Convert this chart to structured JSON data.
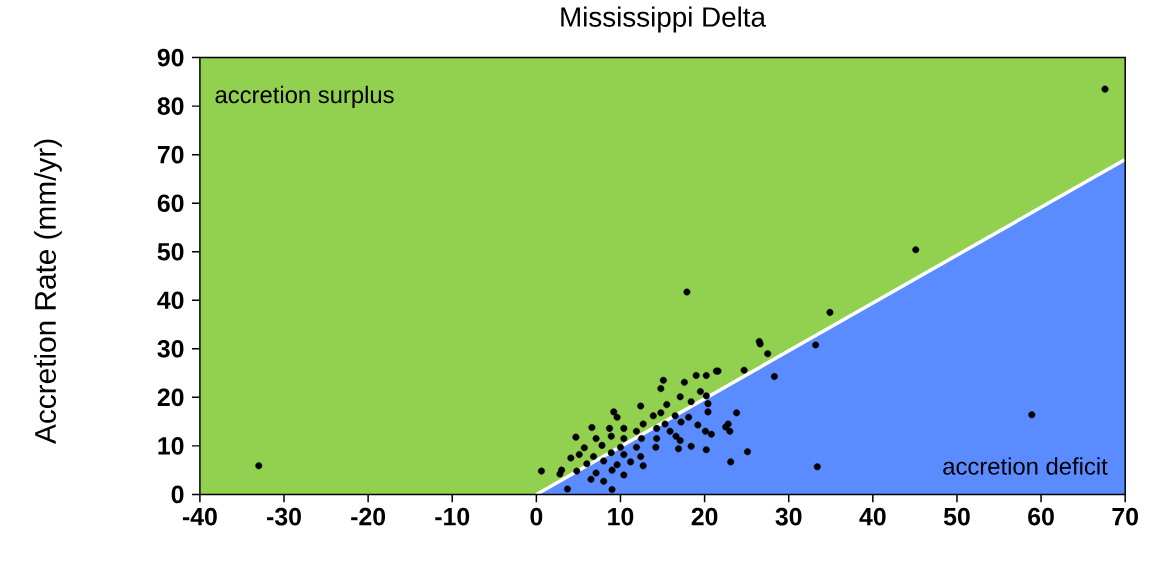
{
  "chart_data": {
    "type": "scatter",
    "title": "Mississippi Delta",
    "ylabel": "Accretion Rate (mm/yr)",
    "annotations": [
      "accretion surplus",
      "accretion deficit"
    ],
    "bands": [
      {
        "axis": "y",
        "from": 0,
        "to": 90,
        "color": "#92d050"
      }
    ],
    "xlim": [
      -40,
      70
    ],
    "ylim": [
      0,
      90
    ],
    "xticks": [
      -40,
      -30,
      -20,
      -10,
      0,
      10,
      20,
      30,
      40,
      50,
      60,
      70
    ],
    "yticks": [
      0,
      10,
      20,
      30,
      40,
      50,
      60,
      70,
      80,
      90
    ],
    "grid": false,
    "series": [
      {
        "type": "area",
        "color": "#5b8cff",
        "x": [
          0,
          70
        ],
        "values": [
          0,
          69
        ]
      },
      {
        "type": "scatter",
        "marker": "circle",
        "color": "#000000",
        "x": [
          -33.0,
          67.6,
          45.1,
          17.9,
          34.9,
          33.2,
          58.9,
          33.4,
          26.6,
          26.5,
          27.5,
          28.3,
          24.7,
          21.4,
          25.1,
          23.1,
          23.8,
          22.8,
          23.0,
          3.0,
          21.6,
          19.0,
          20.2,
          15.1,
          17.6,
          14.8,
          19.5,
          17.1,
          20.2,
          18.4,
          15.5,
          12.4,
          20.4,
          20.4,
          9.2,
          9.6,
          13.9,
          14.8,
          16.5,
          18.1,
          12.7,
          15.3,
          17.2,
          19.2,
          20.1,
          20.8,
          22.5,
          6.6,
          8.7,
          10.4,
          11.9,
          14.3,
          15.9,
          4.7,
          7.1,
          8.9,
          10.4,
          12.5,
          14.3,
          16.6,
          5.7,
          7.8,
          10.0,
          11.9,
          14.2,
          17.1,
          16.9,
          18.4,
          20.2,
          5.1,
          6.8,
          8.9,
          10.4,
          12.4,
          4.1,
          6.0,
          8.0,
          9.6,
          11.2,
          12.7,
          0.6,
          2.8,
          4.8,
          7.1,
          9.0,
          10.4,
          8.0,
          3.7,
          9.0,
          6.5
        ],
        "values": [
          5.9,
          83.5,
          50.4,
          41.7,
          37.5,
          30.8,
          16.4,
          5.7,
          31.0,
          31.5,
          29.0,
          24.3,
          25.6,
          25.4,
          8.8,
          6.7,
          16.8,
          14.5,
          13.0,
          5.0,
          25.4,
          24.5,
          24.5,
          23.5,
          23.1,
          21.8,
          21.2,
          20.1,
          20.3,
          19.1,
          18.5,
          18.2,
          18.7,
          17.0,
          17.0,
          15.9,
          16.2,
          16.8,
          16.2,
          15.9,
          14.5,
          14.5,
          14.9,
          14.3,
          13.0,
          12.4,
          13.9,
          13.8,
          13.6,
          13.6,
          13.0,
          13.6,
          13.0,
          11.8,
          11.5,
          12.0,
          11.5,
          11.5,
          11.5,
          12.0,
          9.6,
          10.1,
          9.7,
          9.7,
          9.7,
          11.1,
          9.4,
          9.9,
          9.2,
          8.2,
          7.8,
          8.6,
          8.2,
          7.8,
          7.5,
          6.3,
          6.9,
          6.1,
          6.7,
          5.9,
          4.8,
          4.2,
          4.8,
          4.4,
          5.0,
          4.0,
          2.7,
          1.1,
          1.0,
          3.1
        ]
      }
    ]
  }
}
